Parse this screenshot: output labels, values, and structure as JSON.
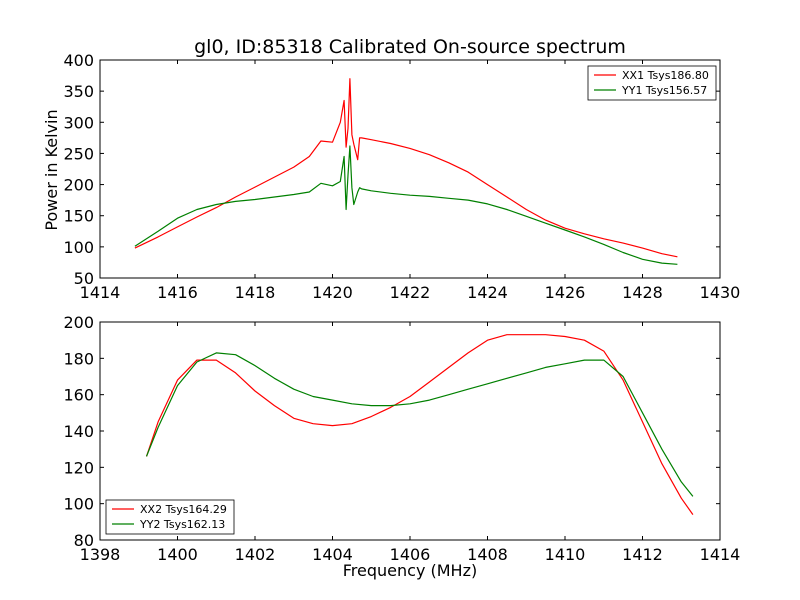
{
  "figure": {
    "title": "gl0, ID:85318 Calibrated On-source spectrum",
    "xlabel": "Frequency (MHz)",
    "ylabel_top": "Power in Kelvin"
  },
  "chart_data": [
    {
      "type": "line",
      "title": "gl0, ID:85318 Calibrated On-source spectrum",
      "xlabel": "",
      "ylabel": "Power in Kelvin",
      "xlim": [
        1414,
        1430
      ],
      "ylim": [
        50,
        400
      ],
      "xticks": [
        1414,
        1416,
        1418,
        1420,
        1422,
        1424,
        1426,
        1428,
        1430
      ],
      "yticks": [
        50,
        100,
        150,
        200,
        250,
        300,
        350,
        400
      ],
      "legend_position": "top-right",
      "series": [
        {
          "name": "XX1 Tsys186.80",
          "color": "#ff0000",
          "x": [
            1414.9,
            1415.5,
            1416.0,
            1416.5,
            1417.0,
            1417.5,
            1418.0,
            1418.5,
            1419.0,
            1419.4,
            1419.7,
            1420.0,
            1420.2,
            1420.3,
            1420.35,
            1420.4,
            1420.45,
            1420.5,
            1420.55,
            1420.65,
            1420.7,
            1420.75,
            1421.0,
            1421.5,
            1422.0,
            1422.5,
            1423.0,
            1423.5,
            1424.0,
            1424.5,
            1425.0,
            1425.5,
            1426.0,
            1426.5,
            1427.0,
            1427.5,
            1428.0,
            1428.5,
            1428.9
          ],
          "y": [
            98,
            116,
            132,
            148,
            163,
            180,
            196,
            212,
            228,
            245,
            270,
            268,
            300,
            335,
            260,
            290,
            370,
            280,
            265,
            240,
            275,
            275,
            272,
            266,
            258,
            248,
            235,
            220,
            200,
            180,
            160,
            143,
            130,
            121,
            113,
            106,
            98,
            89,
            84
          ]
        },
        {
          "name": "YY1 Tsys156.57",
          "color": "#008000",
          "x": [
            1414.9,
            1415.5,
            1416.0,
            1416.5,
            1417.0,
            1417.5,
            1418.0,
            1418.5,
            1419.0,
            1419.4,
            1419.7,
            1420.0,
            1420.2,
            1420.3,
            1420.35,
            1420.4,
            1420.45,
            1420.5,
            1420.55,
            1420.65,
            1420.7,
            1420.75,
            1421.0,
            1421.5,
            1422.0,
            1422.5,
            1423.0,
            1423.5,
            1424.0,
            1424.5,
            1425.0,
            1425.5,
            1426.0,
            1426.5,
            1427.0,
            1427.5,
            1428.0,
            1428.5,
            1428.9
          ],
          "y": [
            101,
            125,
            146,
            160,
            168,
            173,
            176,
            180,
            184,
            188,
            202,
            198,
            205,
            245,
            160,
            215,
            262,
            195,
            168,
            188,
            195,
            193,
            190,
            186,
            183,
            181,
            178,
            175,
            169,
            160,
            149,
            138,
            127,
            116,
            104,
            91,
            80,
            74,
            72
          ]
        }
      ]
    },
    {
      "type": "line",
      "title": "",
      "xlabel": "Frequency (MHz)",
      "ylabel": "",
      "xlim": [
        1398,
        1414
      ],
      "ylim": [
        80,
        200
      ],
      "xticks": [
        1398,
        1400,
        1402,
        1404,
        1406,
        1408,
        1410,
        1412,
        1414
      ],
      "yticks": [
        80,
        100,
        120,
        140,
        160,
        180,
        200
      ],
      "legend_position": "bottom-left",
      "series": [
        {
          "name": "XX2 Tsys164.29",
          "color": "#ff0000",
          "x": [
            1399.2,
            1399.5,
            1400.0,
            1400.5,
            1401.0,
            1401.5,
            1402.0,
            1402.5,
            1403.0,
            1403.5,
            1404.0,
            1404.5,
            1405.0,
            1405.5,
            1406.0,
            1406.5,
            1407.0,
            1407.5,
            1408.0,
            1408.5,
            1409.0,
            1409.5,
            1410.0,
            1410.5,
            1411.0,
            1411.5,
            1412.0,
            1412.5,
            1413.0,
            1413.3
          ],
          "y": [
            126,
            145,
            168,
            179,
            179,
            172,
            162,
            154,
            147,
            144,
            143,
            144,
            148,
            153,
            159,
            167,
            175,
            183,
            190,
            193,
            193,
            193,
            192,
            190,
            184,
            168,
            145,
            122,
            103,
            94
          ]
        },
        {
          "name": "YY2 Tsys162.13",
          "color": "#008000",
          "x": [
            1399.2,
            1399.5,
            1400.0,
            1400.5,
            1401.0,
            1401.5,
            1402.0,
            1402.5,
            1403.0,
            1403.5,
            1404.0,
            1404.5,
            1405.0,
            1405.5,
            1406.0,
            1406.5,
            1407.0,
            1407.5,
            1408.0,
            1408.5,
            1409.0,
            1409.5,
            1410.0,
            1410.5,
            1411.0,
            1411.5,
            1412.0,
            1412.5,
            1413.0,
            1413.3
          ],
          "y": [
            126,
            142,
            165,
            178,
            183,
            182,
            176,
            169,
            163,
            159,
            157,
            155,
            154,
            154,
            155,
            157,
            160,
            163,
            166,
            169,
            172,
            175,
            177,
            179,
            179,
            170,
            150,
            130,
            112,
            104
          ]
        }
      ]
    }
  ]
}
